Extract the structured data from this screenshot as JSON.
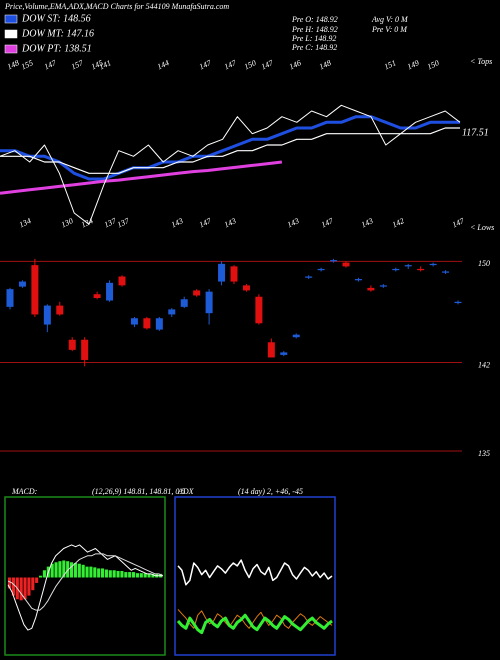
{
  "header": {
    "title": "Price,Volume,EMA,ADX,MACD Charts for 544109 MunafaSutra.com",
    "stats": [
      "Pre  O: 148.92",
      "Pre  H: 148.92",
      "Pre  L: 148.92",
      "Pre  C: 148.92",
      "Avg V: 0  M",
      "Pre  V: 0  M"
    ]
  },
  "chart_data": [
    {
      "type": "line",
      "series": [
        {
          "name": "DOW ST: 148.56",
          "color": "#1f4fe0",
          "values": [
            144,
            144,
            143,
            143,
            142,
            140,
            139,
            139,
            140,
            141,
            141,
            142,
            142,
            143,
            143,
            144,
            145,
            146,
            146,
            147,
            148,
            148,
            149,
            149,
            150,
            150,
            149,
            148,
            148,
            149,
            149,
            149
          ]
        },
        {
          "name": "DOW MT: 147.16",
          "color": "#ffffff",
          "values": [
            143,
            143,
            143,
            142,
            142,
            141,
            140,
            140,
            140,
            141,
            141,
            141,
            142,
            142,
            143,
            143,
            144,
            144,
            145,
            145,
            146,
            146,
            147,
            147,
            147,
            147,
            147,
            147,
            147,
            147,
            148,
            148
          ]
        },
        {
          "name": "DOW PT: 138.51",
          "color": "#e040e0",
          "values": [
            136.5,
            136.8,
            137.1,
            137.4,
            137.7,
            138,
            138.3,
            138.6,
            138.8,
            139.1,
            139.4,
            139.7,
            140,
            140.3,
            140.5,
            140.8,
            141.1,
            141.4,
            141.7,
            142,
            null,
            null,
            null,
            null,
            null,
            null,
            null,
            null,
            null,
            null,
            null,
            null
          ]
        },
        {
          "color": "#ffffff",
          "values": [
            143,
            144,
            142,
            145,
            140,
            133,
            131,
            138,
            144,
            143,
            145,
            142,
            144,
            143,
            145,
            146,
            150,
            147,
            148,
            150,
            149,
            151,
            150,
            152,
            151,
            150,
            145,
            147,
            149,
            150,
            151,
            149
          ]
        }
      ],
      "ylim": [
        130,
        160
      ],
      "annotation": "117.51",
      "tops": [
        148,
        155,
        147,
        157,
        145,
        141,
        144,
        147,
        147,
        150,
        147,
        146,
        148,
        151,
        149,
        150
      ],
      "tops_label": "< Tops",
      "lows": [
        134,
        130,
        134,
        137,
        137,
        143,
        147,
        143,
        143,
        147,
        143,
        142,
        147
      ],
      "lows_label": "< Lows"
    },
    {
      "type": "candlestick",
      "open": [
        146.4,
        148.0,
        149.7,
        145.0,
        146.5,
        143.8,
        143.8,
        147.4,
        146.9,
        148.8,
        145.0,
        145.5,
        144.6,
        145.8,
        146.4,
        147.7,
        145.9,
        148.4,
        149.6,
        148.1,
        147.2,
        143.6,
        142.6,
        144.0,
        148.7,
        149.3,
        150.0,
        149.9,
        148.5,
        147.9,
        148.0,
        149.3,
        149.6,
        149.4,
        149.7,
        149.1,
        146.7
      ],
      "high": [
        147.9,
        148.5,
        150.2,
        146.6,
        146.8,
        144.0,
        144.0,
        147.6,
        148.5,
        148.9,
        145.6,
        145.6,
        145.6,
        146.3,
        147.2,
        147.8,
        147.8,
        150.0,
        149.7,
        148.2,
        147.4,
        143.9,
        142.9,
        144.3,
        148.9,
        149.5,
        150.2,
        150.0,
        148.7,
        148.1,
        148.2,
        149.5,
        149.8,
        149.6,
        149.9,
        149.3,
        146.9
      ],
      "low": [
        146.2,
        147.9,
        145.6,
        144.4,
        145.7,
        142.9,
        141.7,
        147.0,
        146.8,
        148.0,
        144.8,
        144.6,
        144.5,
        145.6,
        146.3,
        147.2,
        145.0,
        148.1,
        148.2,
        147.6,
        145.0,
        142.4,
        142.5,
        143.9,
        148.6,
        149.2,
        149.9,
        149.5,
        148.4,
        147.6,
        147.9,
        149.2,
        149.4,
        149.2,
        149.6,
        149.0,
        146.6
      ],
      "close": [
        147.8,
        148.4,
        145.8,
        146.5,
        145.8,
        143.0,
        142.2,
        147.1,
        148.3,
        148.1,
        145.5,
        144.7,
        145.5,
        146.2,
        147.0,
        147.3,
        147.6,
        149.8,
        148.4,
        147.7,
        145.1,
        142.4,
        142.8,
        144.2,
        148.8,
        149.4,
        150.1,
        149.6,
        148.6,
        147.7,
        148.1,
        149.4,
        149.7,
        149.3,
        149.8,
        149.2,
        146.8
      ],
      "up_color": "#1e5bd6",
      "down_color": "#e01010",
      "ylim": [
        133.5,
        150.5
      ],
      "yticks": [
        150,
        142,
        135
      ],
      "grid": true,
      "grid_color": "#a01010"
    },
    {
      "type": "macd",
      "title": "MACD:",
      "subtitle": "(12,26,9) 148.81, 148.81, 0.5",
      "histogram": [
        -0.3,
        -0.5,
        -0.6,
        -0.63,
        -0.6,
        -0.5,
        -0.35,
        -0.15,
        0.05,
        0.2,
        0.3,
        0.38,
        0.42,
        0.45,
        0.47,
        0.45,
        0.42,
        0.4,
        0.38,
        0.35,
        0.3,
        0.3,
        0.28,
        0.25,
        0.25,
        0.22,
        0.2,
        0.2,
        0.18,
        0.18,
        0.15,
        0.15,
        0.15,
        0.12,
        0.12,
        0.12,
        0.1,
        0.1,
        0.1,
        0.1
      ],
      "pos_color": "#33ee33",
      "neg_color": "#ee2222",
      "series": [
        {
          "color": "#ffffff",
          "values": [
            -0.2,
            -0.4,
            -0.7,
            -1.0,
            -1.3,
            -1.45,
            -1.4,
            -1.1,
            -0.7,
            -0.3,
            0.1,
            0.4,
            0.6,
            0.7,
            0.8,
            0.85,
            0.9,
            0.85,
            0.9,
            0.8,
            0.7,
            0.75,
            0.8,
            0.7,
            0.6,
            0.5,
            0.55,
            0.6,
            0.5,
            0.4,
            0.3,
            0.2,
            0.25,
            0.2,
            0.15,
            0.1,
            0.1,
            0.05,
            0.05,
            0.05
          ]
        },
        {
          "color": "#dddddd",
          "values": [
            -0.1,
            -0.15,
            -0.25,
            -0.4,
            -0.55,
            -0.7,
            -0.85,
            -0.9,
            -0.9,
            -0.8,
            -0.65,
            -0.45,
            -0.25,
            -0.1,
            0.05,
            0.2,
            0.3,
            0.4,
            0.5,
            0.55,
            0.6,
            0.6,
            0.65,
            0.65,
            0.65,
            0.6,
            0.6,
            0.6,
            0.55,
            0.5,
            0.45,
            0.4,
            0.35,
            0.3,
            0.25,
            0.2,
            0.15,
            0.1,
            0.1,
            0.05
          ]
        }
      ],
      "ylim": [
        -2,
        2
      ],
      "frame_color": "#1a8a1a"
    },
    {
      "type": "adx",
      "title": "ADX",
      "subtitle": "(14 day) 2, +46, -45",
      "series": [
        {
          "color": "#ffffff",
          "values": [
            58,
            55,
            45,
            48,
            60,
            57,
            52,
            55,
            50,
            54,
            58,
            56,
            53,
            57,
            60,
            58,
            62,
            55,
            50,
            56,
            59,
            54,
            52,
            57,
            48,
            50,
            55,
            60,
            58,
            52,
            49,
            53,
            57,
            55,
            51,
            54,
            50,
            53,
            49,
            51
          ]
        },
        {
          "color": "#e07a10",
          "values": [
            28,
            25,
            22,
            18,
            15,
            24,
            27,
            22,
            18,
            20,
            25,
            23,
            19,
            16,
            20,
            24,
            22,
            18,
            15,
            19,
            23,
            26,
            21,
            17,
            20,
            24,
            22,
            17,
            15,
            19,
            22,
            25,
            23,
            19,
            17,
            20,
            23,
            21,
            19,
            17
          ]
        },
        {
          "color": "#33ee33",
          "values": [
            20,
            17,
            15,
            22,
            18,
            14,
            12,
            19,
            21,
            18,
            16,
            20,
            22,
            17,
            15,
            19,
            21,
            24,
            20,
            16,
            14,
            18,
            22,
            20,
            17,
            15,
            19,
            23,
            21,
            18,
            16,
            14,
            17,
            20,
            22,
            19,
            17,
            15,
            18,
            20
          ]
        }
      ],
      "ylim": [
        0,
        100
      ],
      "frame_color": "#2040d0"
    }
  ]
}
